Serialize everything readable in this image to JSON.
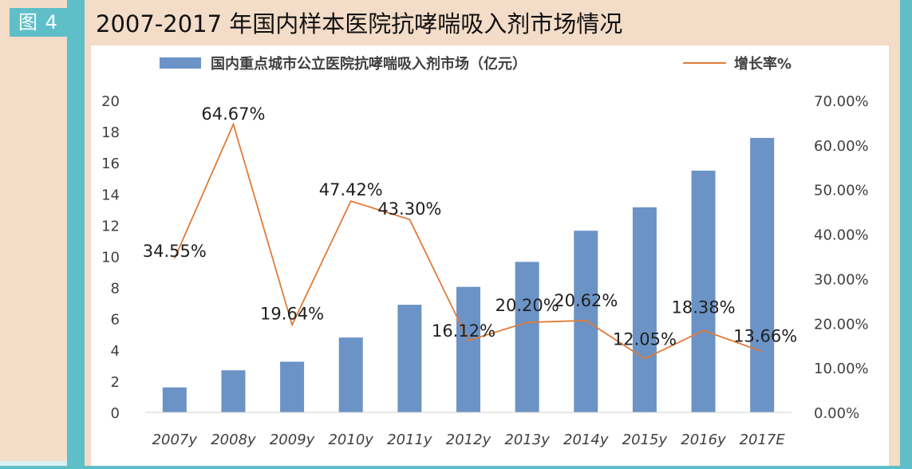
{
  "figure_label": "图 4",
  "title": "2007-2017 年国内样本医院抗哮喘吸入剂市场情况",
  "colors": {
    "bar": "#6b93c6",
    "line": "#e07b39",
    "teal": "#5fbfc9",
    "beige": "#f3dcc8"
  },
  "chart_data": {
    "type": "bar",
    "categories": [
      "2007y",
      "2008y",
      "2009y",
      "2010y",
      "2011y",
      "2012y",
      "2013y",
      "2014y",
      "2015y",
      "2016y",
      "2017E"
    ],
    "series": [
      {
        "name": "国内重点城市公立医院抗哮喘吸入剂市场（亿元）",
        "type": "bar",
        "axis": "left",
        "values": [
          1.6,
          2.7,
          3.25,
          4.8,
          6.9,
          8.05,
          9.65,
          11.65,
          13.15,
          15.5,
          17.6
        ]
      },
      {
        "name": "增长率%",
        "type": "line",
        "axis": "right",
        "values": [
          34.55,
          64.67,
          19.64,
          47.42,
          43.3,
          16.12,
          20.2,
          20.62,
          12.05,
          18.38,
          13.66
        ],
        "labels": [
          "34.55%",
          "64.67%",
          "19.64%",
          "47.42%",
          "43.30%",
          "16.12%",
          "20.20%",
          "20.62%",
          "12.05%",
          "18.38%",
          "13.66%"
        ]
      }
    ],
    "y_left": {
      "min": 0,
      "max": 20,
      "step": 2,
      "ticks": [
        "0",
        "2",
        "4",
        "6",
        "8",
        "10",
        "12",
        "14",
        "16",
        "18",
        "20"
      ]
    },
    "y_right": {
      "min": 0,
      "max": 70,
      "step": 10,
      "ticks": [
        "0.00%",
        "10.00%",
        "20.00%",
        "30.00%",
        "40.00%",
        "50.00%",
        "60.00%",
        "70.00%"
      ]
    },
    "grid": false,
    "legend_position": "top"
  }
}
